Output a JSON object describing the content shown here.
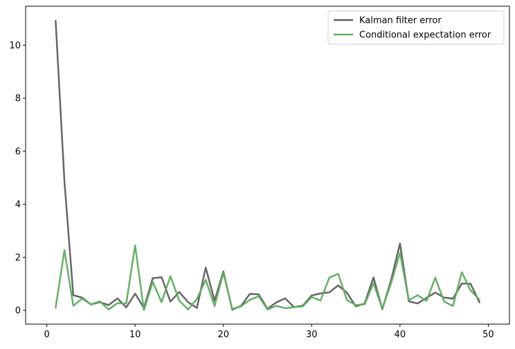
{
  "chart_data": {
    "type": "line",
    "title": "",
    "xlabel": "",
    "ylabel": "",
    "xlim": [
      -2.4,
      52.4
    ],
    "ylim": [
      -0.52,
      11.47
    ],
    "xticks": [
      0,
      10,
      20,
      30,
      40,
      50
    ],
    "yticks": [
      0,
      2,
      4,
      6,
      8,
      10
    ],
    "grid": false,
    "legend_position": "upper right",
    "x": [
      1,
      2,
      3,
      4,
      5,
      6,
      7,
      8,
      9,
      10,
      11,
      12,
      13,
      14,
      15,
      16,
      17,
      18,
      19,
      20,
      21,
      22,
      23,
      24,
      25,
      26,
      27,
      28,
      29,
      30,
      31,
      32,
      33,
      34,
      35,
      36,
      37,
      38,
      39,
      40,
      41,
      42,
      43,
      44,
      45,
      46,
      47,
      48,
      49
    ],
    "series": [
      {
        "name": "Kalman filter error",
        "color": "#606060",
        "values": [
          10.92,
          4.85,
          0.57,
          0.48,
          0.22,
          0.31,
          0.2,
          0.45,
          0.11,
          0.63,
          0.09,
          1.21,
          1.25,
          0.33,
          0.69,
          0.31,
          0.09,
          1.61,
          0.36,
          1.47,
          0.02,
          0.17,
          0.62,
          0.6,
          0.06,
          0.3,
          0.45,
          0.12,
          0.18,
          0.56,
          0.64,
          0.68,
          0.94,
          0.66,
          0.15,
          0.26,
          1.24,
          0.04,
          1.15,
          2.52,
          0.34,
          0.26,
          0.47,
          0.67,
          0.48,
          0.44,
          1.01,
          1.0,
          0.3
        ]
      },
      {
        "name": "Conditional expectation error",
        "color": "#5fae5f",
        "values": [
          0.1,
          2.27,
          0.17,
          0.45,
          0.22,
          0.34,
          0.03,
          0.27,
          0.26,
          2.45,
          0.01,
          1.07,
          0.31,
          1.29,
          0.37,
          0.03,
          0.43,
          1.15,
          0.16,
          1.42,
          0.05,
          0.15,
          0.4,
          0.53,
          0.03,
          0.17,
          0.08,
          0.12,
          0.15,
          0.5,
          0.37,
          1.23,
          1.38,
          0.38,
          0.2,
          0.23,
          1.02,
          0.07,
          1.03,
          2.17,
          0.38,
          0.57,
          0.35,
          1.23,
          0.33,
          0.16,
          1.44,
          0.75,
          0.4
        ]
      }
    ]
  }
}
